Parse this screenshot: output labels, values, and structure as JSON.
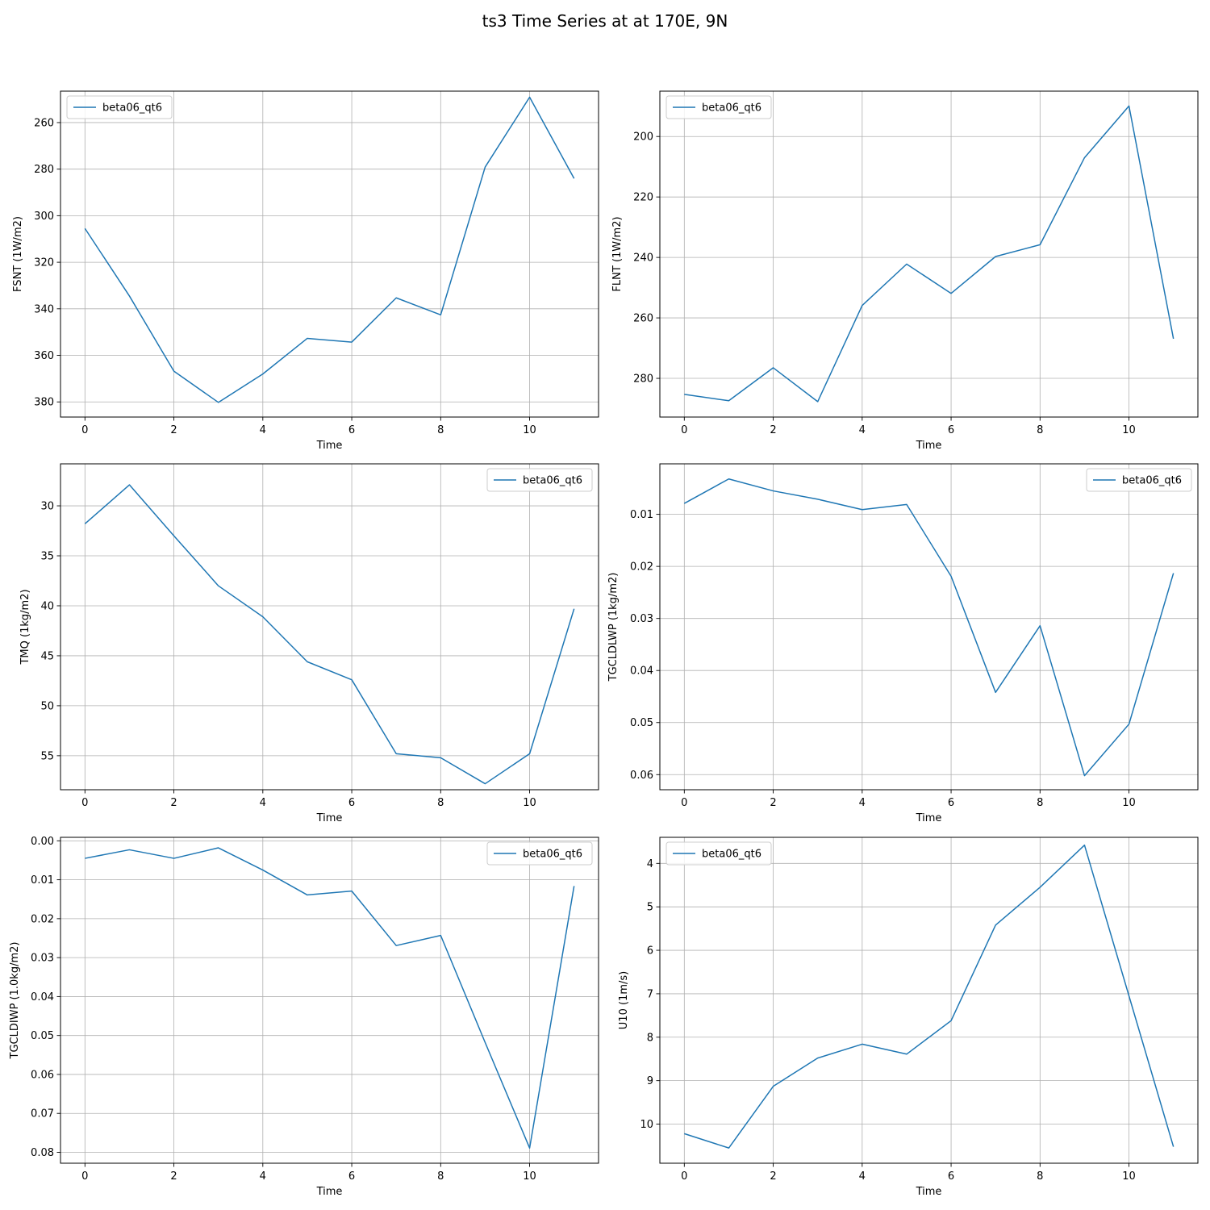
{
  "figure": {
    "title": "ts3 Time Series at at 170E, 9N"
  },
  "chart_data": [
    {
      "type": "line",
      "xlabel": "Time",
      "ylabel": "FSNT (1W/m2)",
      "x": [
        0,
        1,
        2,
        3,
        4,
        5,
        6,
        7,
        8,
        9,
        10,
        11
      ],
      "xticks": [
        0,
        2,
        4,
        6,
        8,
        10
      ],
      "xlim": [
        -0.55,
        11.55
      ],
      "ylim": [
        386.5,
        246.5
      ],
      "yticks": [
        260,
        280,
        300,
        320,
        340,
        360,
        380
      ],
      "ytick_labels": [
        "260",
        "280",
        "300",
        "320",
        "340",
        "360",
        "380"
      ],
      "y_inverted": true,
      "grid": true,
      "legend": "top-left",
      "series": [
        {
          "name": "beta06_qt6",
          "color": "#1f77b4",
          "values": [
            305.5,
            334.5,
            366.8,
            380.2,
            368,
            352.7,
            354.3,
            335.3,
            342.6,
            279.1,
            249.1,
            284
          ]
        }
      ]
    },
    {
      "type": "line",
      "xlabel": "Time",
      "ylabel": "FLNT (1W/m2)",
      "x": [
        0,
        1,
        2,
        3,
        4,
        5,
        6,
        7,
        8,
        9,
        10,
        11
      ],
      "xticks": [
        0,
        2,
        4,
        6,
        8,
        10
      ],
      "xlim": [
        -0.55,
        11.55
      ],
      "ylim": [
        292.8,
        185
      ],
      "yticks": [
        200,
        220,
        240,
        260,
        280
      ],
      "ytick_labels": [
        "200",
        "220",
        "240",
        "260",
        "280"
      ],
      "y_inverted": true,
      "grid": true,
      "legend": "top-left",
      "series": [
        {
          "name": "beta06_qt6",
          "color": "#1f77b4",
          "values": [
            285.3,
            287.4,
            276.5,
            287.7,
            255.9,
            242.2,
            251.9,
            239.7,
            235.8,
            207,
            189.9,
            266.9
          ]
        }
      ]
    },
    {
      "type": "line",
      "xlabel": "Time",
      "ylabel": "TMQ (1kg/m2)",
      "x": [
        0,
        1,
        2,
        3,
        4,
        5,
        6,
        7,
        8,
        9,
        10,
        11
      ],
      "xticks": [
        0,
        2,
        4,
        6,
        8,
        10
      ],
      "xlim": [
        -0.55,
        11.55
      ],
      "ylim": [
        58.4,
        25.8
      ],
      "yticks": [
        30,
        35,
        40,
        45,
        50,
        55
      ],
      "ytick_labels": [
        "30",
        "35",
        "40",
        "45",
        "50",
        "55"
      ],
      "y_inverted": true,
      "grid": true,
      "legend": "top-right",
      "series": [
        {
          "name": "beta06_qt6",
          "color": "#1f77b4",
          "values": [
            31.8,
            27.9,
            33,
            38,
            41.1,
            45.6,
            47.4,
            54.8,
            55.2,
            57.8,
            54.8,
            40.3
          ]
        }
      ]
    },
    {
      "type": "line",
      "xlabel": "Time",
      "ylabel": "TGCLDLWP (1kg/m2)",
      "x": [
        0,
        1,
        2,
        3,
        4,
        5,
        6,
        7,
        8,
        9,
        10,
        11
      ],
      "xticks": [
        0,
        2,
        4,
        6,
        8,
        10
      ],
      "xlim": [
        -0.55,
        11.55
      ],
      "ylim": [
        0.0629,
        0.0003
      ],
      "yticks": [
        0.01,
        0.02,
        0.03,
        0.04,
        0.05,
        0.06
      ],
      "ytick_labels": [
        "0.01",
        "0.02",
        "0.03",
        "0.04",
        "0.05",
        "0.06"
      ],
      "y_inverted": true,
      "grid": true,
      "legend": "top-right",
      "series": [
        {
          "name": "beta06_qt6",
          "color": "#1f77b4",
          "values": [
            0.0079,
            0.0032,
            0.0055,
            0.0071,
            0.0091,
            0.0081,
            0.0219,
            0.0442,
            0.0314,
            0.0602,
            0.0503,
            0.0213
          ]
        }
      ]
    },
    {
      "type": "line",
      "xlabel": "Time",
      "ylabel": "TGCLDIWP (1.0kg/m2)",
      "x": [
        0,
        1,
        2,
        3,
        4,
        5,
        6,
        7,
        8,
        9,
        10,
        11
      ],
      "xticks": [
        0,
        2,
        4,
        6,
        8,
        10
      ],
      "xlim": [
        -0.55,
        11.55
      ],
      "ylim": [
        0.0828,
        -0.0009
      ],
      "yticks": [
        0,
        0.01,
        0.02,
        0.03,
        0.04,
        0.05,
        0.06,
        0.07,
        0.08
      ],
      "ytick_labels": [
        "0.00",
        "0.01",
        "0.02",
        "0.03",
        "0.04",
        "0.05",
        "0.06",
        "0.07",
        "0.08"
      ],
      "y_inverted": true,
      "grid": true,
      "legend": "top-right",
      "series": [
        {
          "name": "beta06_qt6",
          "color": "#1f77b4",
          "values": [
            0.0045,
            0.0023,
            0.0045,
            0.0018,
            0.0075,
            0.0139,
            0.0129,
            0.0269,
            0.0243,
            0.0518,
            0.0789,
            0.0116
          ]
        }
      ]
    },
    {
      "type": "line",
      "xlabel": "Time",
      "ylabel": "U10 (1m/s)",
      "x": [
        0,
        1,
        2,
        3,
        4,
        5,
        6,
        7,
        8,
        9,
        10,
        11
      ],
      "xticks": [
        0,
        2,
        4,
        6,
        8,
        10
      ],
      "xlim": [
        -0.55,
        11.55
      ],
      "ylim": [
        10.9,
        3.4
      ],
      "yticks": [
        4,
        5,
        6,
        7,
        8,
        9,
        10
      ],
      "ytick_labels": [
        "4",
        "5",
        "6",
        "7",
        "8",
        "9",
        "10"
      ],
      "y_inverted": true,
      "grid": true,
      "legend": "top-left",
      "series": [
        {
          "name": "beta06_qt6",
          "color": "#1f77b4",
          "values": [
            10.22,
            10.55,
            9.13,
            8.48,
            8.16,
            8.39,
            7.62,
            5.42,
            4.55,
            3.58,
            7.05,
            10.52
          ]
        }
      ]
    }
  ]
}
